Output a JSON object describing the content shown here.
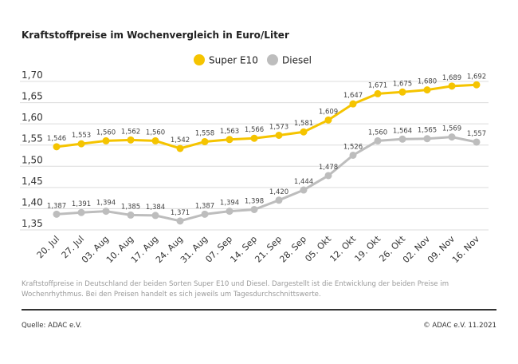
{
  "chart_data": {
    "type": "line",
    "title": "Kraftstoffpreise im Wochenvergleich in Euro/Liter",
    "categories": [
      "20. Jul",
      "27. Jul",
      "03. Aug",
      "10. Aug",
      "17. Aug",
      "24. Aug",
      "31. Aug",
      "07. Sep",
      "14. Sep",
      "21. Sep",
      "28. Sep",
      "05. Okt",
      "12. Okt",
      "19. Okt",
      "26. Okt",
      "02. Nov",
      "09. Nov",
      "16. Nov"
    ],
    "series": [
      {
        "name": "Super E10",
        "color": "#f5c400",
        "values": [
          1.546,
          1.553,
          1.56,
          1.562,
          1.56,
          1.542,
          1.558,
          1.563,
          1.566,
          1.573,
          1.581,
          1.609,
          1.647,
          1.671,
          1.675,
          1.68,
          1.689,
          1.692
        ],
        "labels": [
          "1,546",
          "1,553",
          "1,560",
          "1,562",
          "1,560",
          "1,542",
          "1,558",
          "1,563",
          "1,566",
          "1,573",
          "1,581",
          "1,609",
          "1,647",
          "1,671",
          "1,675",
          "1,680",
          "1,689",
          "1,692"
        ]
      },
      {
        "name": "Diesel",
        "color": "#bdbdbd",
        "values": [
          1.387,
          1.391,
          1.394,
          1.385,
          1.384,
          1.371,
          1.387,
          1.394,
          1.398,
          1.42,
          1.444,
          1.478,
          1.526,
          1.56,
          1.564,
          1.565,
          1.569,
          1.557
        ],
        "labels": [
          "1,387",
          "1,391",
          "1,394",
          "1,385",
          "1,384",
          "1,371",
          "1,387",
          "1,394",
          "1,398",
          "1,420",
          "1,444",
          "1,478",
          "1,526",
          "1,560",
          "1,564",
          "1,565",
          "1,569",
          "1,557"
        ]
      }
    ],
    "yticks": [
      "1,35",
      "1,40",
      "1,45",
      "1,50",
      "1,55",
      "1,60",
      "1,65",
      "1,70"
    ],
    "ylim": [
      1.35,
      1.7
    ],
    "grid": true,
    "legend": "top-center"
  },
  "note": "Kraftstoffpreise in Deutschland der beiden Sorten Super E10 und Diesel. Dargestellt ist die Entwicklung der beiden Preise im Wochenrhythmus. Bei den Preisen handelt es sich jeweils um Tagesdurchschnittswerte.",
  "source": "Quelle: ADAC e.V.",
  "copyright": "© ADAC e.V. 11.2021"
}
